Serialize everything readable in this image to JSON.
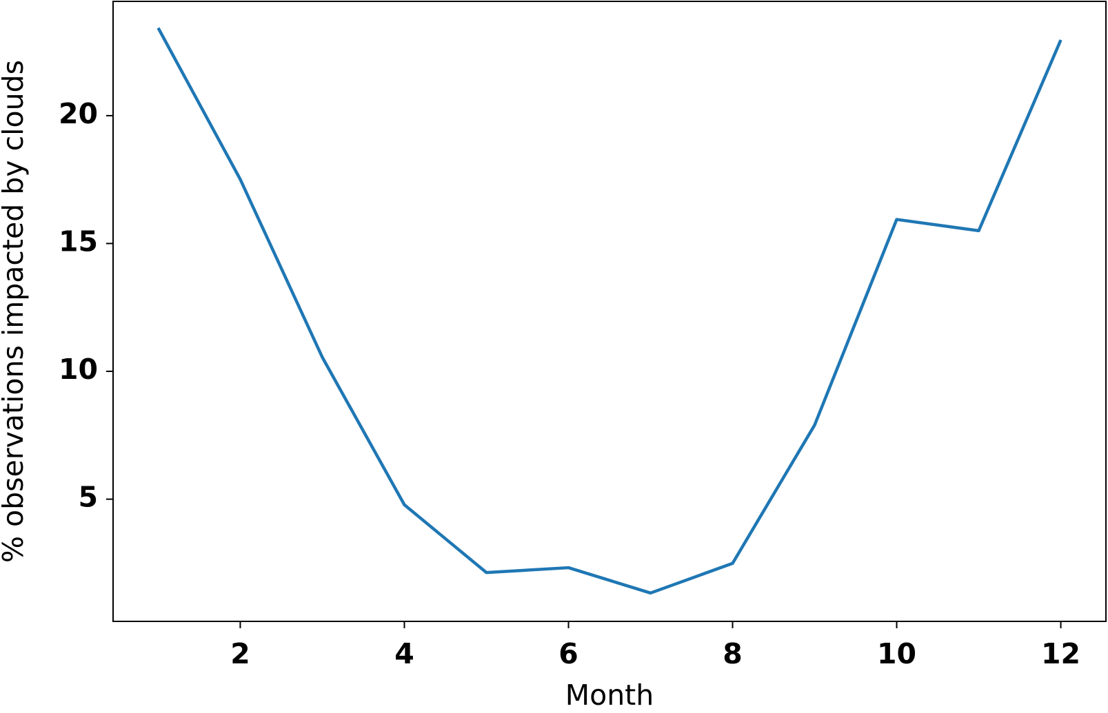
{
  "chart_data": {
    "type": "line",
    "x": [
      1,
      2,
      3,
      4,
      5,
      6,
      7,
      8,
      9,
      10,
      11,
      12
    ],
    "values": [
      23.43,
      17.51,
      10.55,
      4.78,
      2.13,
      2.32,
      1.33,
      2.49,
      7.9,
      15.94,
      15.5,
      22.96
    ],
    "color": "#1f77b4",
    "xlabel": "Month",
    "ylabel": "% observations impacted by clouds",
    "xlim": [
      0.45,
      12.55
    ],
    "xticks": [
      2,
      4,
      6,
      8,
      10,
      12
    ],
    "ylim": [
      0.22,
      24.47
    ],
    "yticks": [
      5,
      10,
      15,
      20
    ]
  }
}
